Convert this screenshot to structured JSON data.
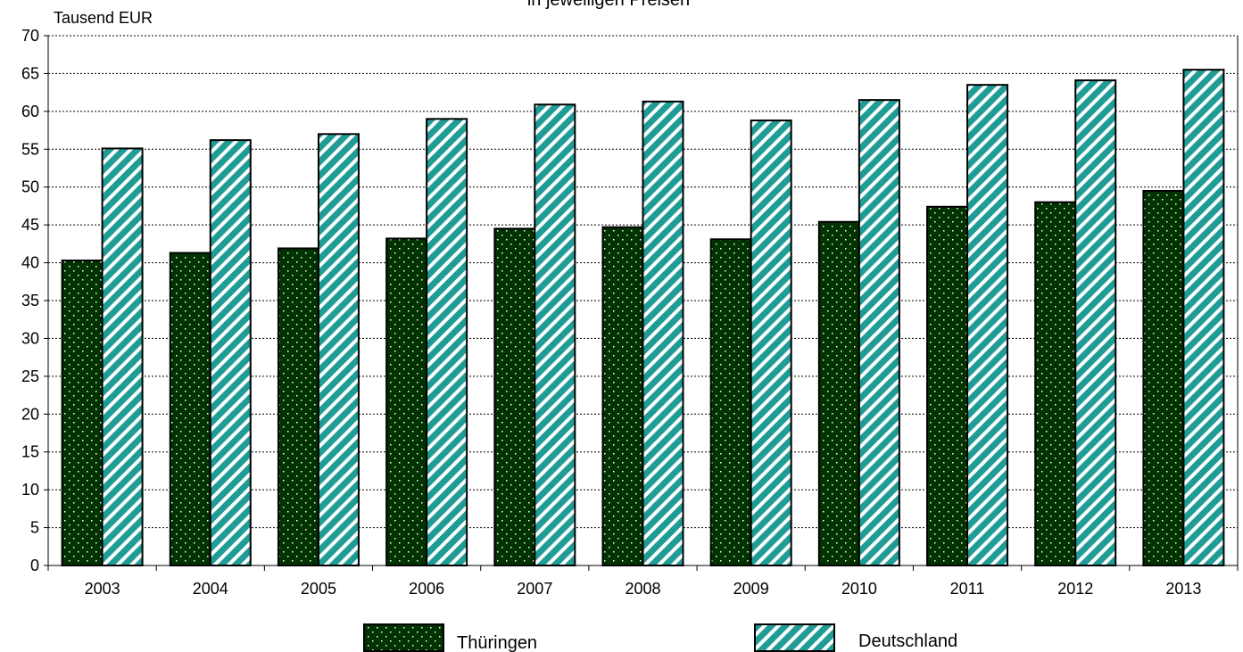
{
  "chart_data": {
    "type": "bar",
    "title": "in jeweiligen Preisen",
    "ylabel": "Tausend EUR",
    "xlabel": "",
    "categories": [
      "2003",
      "2004",
      "2005",
      "2006",
      "2007",
      "2008",
      "2009",
      "2010",
      "2011",
      "2012",
      "2013"
    ],
    "ylim": [
      0,
      70
    ],
    "yticks": [
      "0",
      "5",
      "10",
      "15",
      "20",
      "25",
      "30",
      "35",
      "40",
      "45",
      "50",
      "55",
      "60",
      "65",
      "70"
    ],
    "grid": "horizontal dashed",
    "legend_position": "bottom",
    "series": [
      {
        "name": "Thüringen",
        "values": [
          40.3,
          41.3,
          41.9,
          43.2,
          44.5,
          44.7,
          43.1,
          45.4,
          47.4,
          48.0,
          49.5
        ],
        "color": "#003300",
        "pattern": "dots"
      },
      {
        "name": "Deutschland",
        "values": [
          55.1,
          56.2,
          57.0,
          59.0,
          60.9,
          61.3,
          58.8,
          61.5,
          63.5,
          64.1,
          65.5
        ],
        "color": "#1f9c96",
        "pattern": "diagonal-stripes"
      }
    ]
  }
}
